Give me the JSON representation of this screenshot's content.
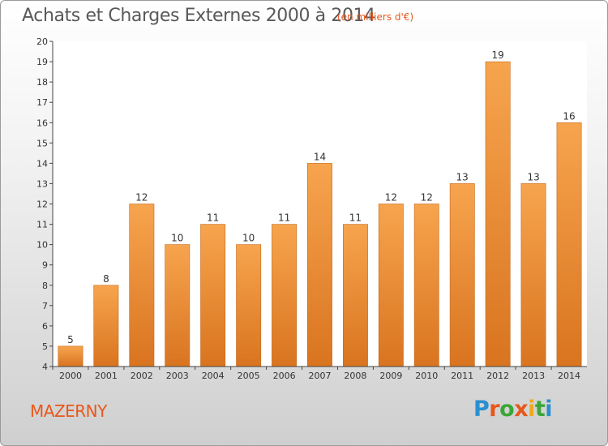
{
  "title": "Achats et Charges Externes 2000 à 2014",
  "subtitle": "(en milliers d'€)",
  "place_name": "MAZERNY",
  "logo": {
    "letters": [
      "P",
      "r",
      "o",
      "x",
      "i",
      "t",
      "i"
    ],
    "colors": [
      "#2a8fd0",
      "#e8571b",
      "#3aa638",
      "#e8571b",
      "#f0a81a",
      "#3aa638",
      "#2a8fd0"
    ]
  },
  "colors": {
    "bar_light": "#f7a44e",
    "bar_dark": "#d97420",
    "title": "#595959",
    "accent": "#e8571b"
  },
  "chart_data": {
    "type": "bar",
    "title": "Achats et Charges Externes 2000 à 2014",
    "subtitle": "(en milliers d'€)",
    "categories": [
      "2000",
      "2001",
      "2002",
      "2003",
      "2004",
      "2005",
      "2006",
      "2007",
      "2008",
      "2009",
      "2010",
      "2011",
      "2012",
      "2013",
      "2014"
    ],
    "values": [
      5,
      8,
      12,
      10,
      11,
      10,
      11,
      14,
      11,
      12,
      12,
      13,
      19,
      13,
      16
    ],
    "ylim": [
      4,
      20
    ],
    "yticks": [
      4,
      5,
      6,
      7,
      8,
      9,
      10,
      11,
      12,
      13,
      14,
      15,
      16,
      17,
      18,
      19,
      20
    ],
    "grid": false,
    "legend": "none"
  }
}
